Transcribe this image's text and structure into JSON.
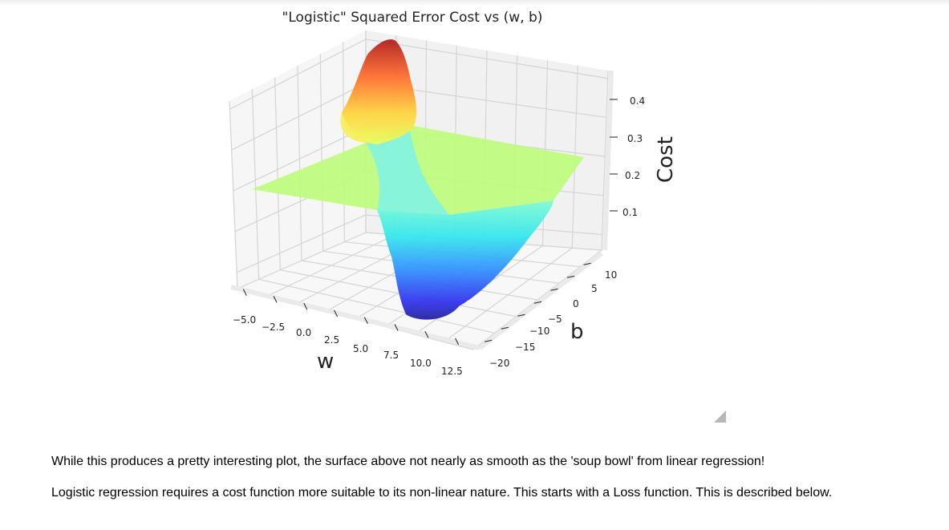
{
  "chart_data": {
    "type": "surface",
    "title": "\"Logistic\" Squared Error Cost vs (w, b)",
    "xlabel": "w",
    "ylabel": "b",
    "zlabel": "Cost",
    "x_ticks": [
      "−5.0",
      "−2.5",
      "0.0",
      "2.5",
      "5.0",
      "7.5",
      "10.0",
      "12.5"
    ],
    "y_ticks": [
      "−20",
      "−15",
      "−10",
      "−5",
      "0",
      "5",
      "10"
    ],
    "z_ticks": [
      "0.1",
      "0.2",
      "0.3",
      "0.4"
    ],
    "xlim": [
      -6,
      12.5
    ],
    "ylim": [
      -20,
      12
    ],
    "zlim": [
      0,
      0.45
    ],
    "colormap": "jet",
    "alpha": 0.6,
    "surface_summary": {
      "max_cost": 0.45,
      "min_cost": 0.0,
      "plateau_cost": 0.21
    }
  },
  "markdown": {
    "paragraph_1": "While this produces a pretty interesting plot, the surface above not nearly as smooth as the 'soup bowl' from linear regression!",
    "paragraph_2": "Logistic regression requires a cost function more suitable to its non-linear nature. This starts with a Loss function. This is described below."
  },
  "colors": {
    "grid": "#d4d4d4",
    "pane": "#f4f4f4",
    "text": "#222222"
  }
}
